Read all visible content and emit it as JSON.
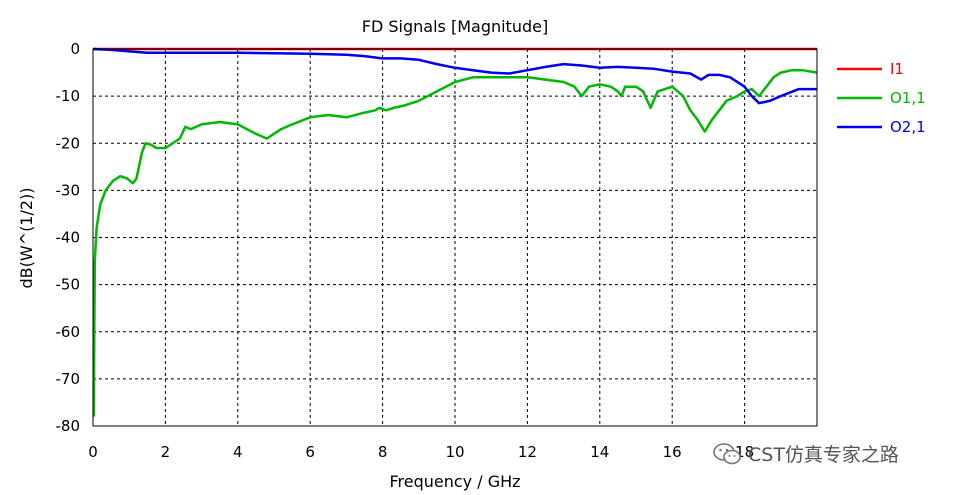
{
  "chart_data": {
    "type": "line",
    "title": "FD Signals [Magnitude]",
    "xlabel": "Frequency / GHz",
    "ylabel": "dB(W^(1/2))",
    "xlim": [
      0,
      20
    ],
    "ylim": [
      -80,
      0
    ],
    "x_ticks": [
      0,
      2,
      4,
      6,
      8,
      10,
      12,
      14,
      16,
      18
    ],
    "y_ticks": [
      0,
      -10,
      -20,
      -30,
      -40,
      -50,
      -60,
      -70,
      -80
    ],
    "grid": true,
    "legend_position": "right",
    "series": [
      {
        "name": "I1",
        "color": "#ff0000",
        "points": [
          [
            0,
            0
          ],
          [
            20,
            0
          ]
        ]
      },
      {
        "name": "O1,1",
        "color": "#00b800",
        "points": [
          [
            0.02,
            -78
          ],
          [
            0.05,
            -45
          ],
          [
            0.1,
            -38
          ],
          [
            0.2,
            -33
          ],
          [
            0.35,
            -30
          ],
          [
            0.55,
            -28
          ],
          [
            0.75,
            -27
          ],
          [
            0.95,
            -27.5
          ],
          [
            1.1,
            -28.5
          ],
          [
            1.2,
            -27.5
          ],
          [
            1.35,
            -22
          ],
          [
            1.45,
            -20
          ],
          [
            1.6,
            -20.3
          ],
          [
            1.75,
            -21
          ],
          [
            2.0,
            -21
          ],
          [
            2.2,
            -20
          ],
          [
            2.4,
            -19
          ],
          [
            2.55,
            -16.5
          ],
          [
            2.7,
            -17
          ],
          [
            3.0,
            -16
          ],
          [
            3.5,
            -15.5
          ],
          [
            4.0,
            -16
          ],
          [
            4.5,
            -18
          ],
          [
            4.8,
            -19
          ],
          [
            5.0,
            -18
          ],
          [
            5.2,
            -17
          ],
          [
            5.5,
            -16
          ],
          [
            6.0,
            -14.5
          ],
          [
            6.5,
            -14
          ],
          [
            7.0,
            -14.5
          ],
          [
            7.5,
            -13.5
          ],
          [
            7.8,
            -13
          ],
          [
            7.9,
            -12.5
          ],
          [
            8.1,
            -13
          ],
          [
            8.3,
            -12.5
          ],
          [
            8.6,
            -12
          ],
          [
            9.0,
            -11
          ],
          [
            9.5,
            -9
          ],
          [
            10.0,
            -7
          ],
          [
            10.5,
            -6
          ],
          [
            11.0,
            -6
          ],
          [
            11.5,
            -6
          ],
          [
            12.0,
            -6
          ],
          [
            12.5,
            -6.5
          ],
          [
            13.0,
            -7
          ],
          [
            13.3,
            -8
          ],
          [
            13.5,
            -10
          ],
          [
            13.7,
            -8
          ],
          [
            14.0,
            -7.5
          ],
          [
            14.3,
            -8
          ],
          [
            14.5,
            -9
          ],
          [
            14.6,
            -10
          ],
          [
            14.7,
            -8
          ],
          [
            15.0,
            -8
          ],
          [
            15.2,
            -9
          ],
          [
            15.4,
            -12.5
          ],
          [
            15.6,
            -9
          ],
          [
            16.0,
            -8
          ],
          [
            16.3,
            -10
          ],
          [
            16.5,
            -13
          ],
          [
            16.7,
            -15
          ],
          [
            16.9,
            -17.5
          ],
          [
            17.1,
            -15
          ],
          [
            17.3,
            -13
          ],
          [
            17.5,
            -11
          ],
          [
            17.8,
            -10
          ],
          [
            18.0,
            -9
          ],
          [
            18.2,
            -8.5
          ],
          [
            18.4,
            -10
          ],
          [
            18.6,
            -8
          ],
          [
            18.8,
            -6
          ],
          [
            19.0,
            -5
          ],
          [
            19.3,
            -4.5
          ],
          [
            19.6,
            -4.5
          ],
          [
            20.0,
            -5
          ]
        ]
      },
      {
        "name": "O2,1",
        "color": "#0000ee",
        "points": [
          [
            0,
            0
          ],
          [
            0.5,
            -0.2
          ],
          [
            1.0,
            -0.5
          ],
          [
            1.5,
            -0.8
          ],
          [
            2.0,
            -0.8
          ],
          [
            3.0,
            -0.8
          ],
          [
            4.0,
            -0.8
          ],
          [
            5.0,
            -0.9
          ],
          [
            6.0,
            -1.0
          ],
          [
            7.0,
            -1.2
          ],
          [
            7.5,
            -1.5
          ],
          [
            8.0,
            -2
          ],
          [
            8.5,
            -2
          ],
          [
            9.0,
            -2.3
          ],
          [
            9.5,
            -3.2
          ],
          [
            10.0,
            -4
          ],
          [
            10.5,
            -4.5
          ],
          [
            11.0,
            -5
          ],
          [
            11.5,
            -5.2
          ],
          [
            12.0,
            -4.5
          ],
          [
            12.5,
            -3.8
          ],
          [
            13.0,
            -3.2
          ],
          [
            13.5,
            -3.5
          ],
          [
            14.0,
            -4
          ],
          [
            14.5,
            -3.8
          ],
          [
            15.0,
            -4
          ],
          [
            15.5,
            -4.2
          ],
          [
            16.0,
            -4.8
          ],
          [
            16.5,
            -5.2
          ],
          [
            16.8,
            -6.5
          ],
          [
            17.0,
            -5.5
          ],
          [
            17.3,
            -5.5
          ],
          [
            17.6,
            -6
          ],
          [
            18.0,
            -8
          ],
          [
            18.2,
            -10
          ],
          [
            18.4,
            -11.5
          ],
          [
            18.7,
            -11
          ],
          [
            19.0,
            -10
          ],
          [
            19.5,
            -8.5
          ],
          [
            20.0,
            -8.5
          ]
        ]
      }
    ]
  },
  "watermark": {
    "text": "CST仿真专家之路"
  }
}
